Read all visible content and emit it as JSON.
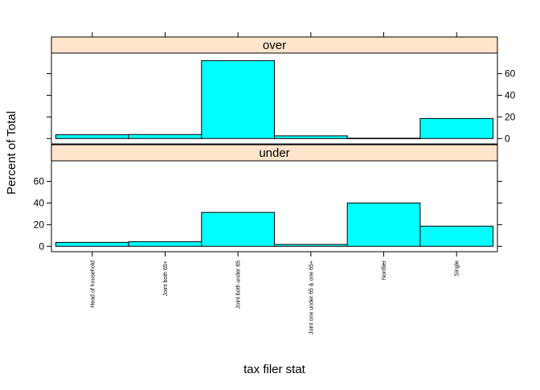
{
  "chart_data": {
    "type": "bar",
    "xlabel": "tax filer stat",
    "ylabel": "Percent of Total",
    "categories": [
      "Head of household",
      "Joint both 65+",
      "Joint both under 65",
      "Joint one under 65 & one 65+",
      "Nonfiler",
      "Single"
    ],
    "panels": [
      {
        "name": "over",
        "values": [
          3.5,
          3.7,
          72.0,
          2.5,
          0.3,
          18.5
        ]
      },
      {
        "name": "under",
        "values": [
          3.6,
          4.2,
          31.3,
          1.7,
          40.0,
          18.6
        ]
      }
    ],
    "ylim": [
      -5,
      79
    ],
    "yticks": [
      0,
      20,
      40,
      60
    ],
    "bar_color": "#00FFFF",
    "strip_color": "#FFE5CC"
  }
}
